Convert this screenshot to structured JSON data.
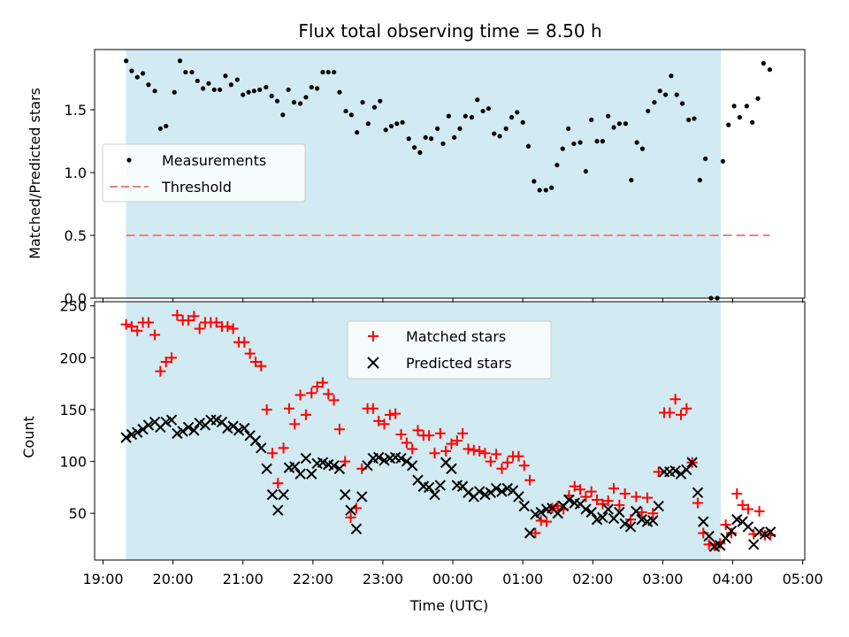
{
  "title": "Flux total observing time = 8.50 h",
  "colors": {
    "shade": "#add8e6",
    "threshold": "#f08080",
    "matched": "#ff0000",
    "predicted": "#000000",
    "measurement": "#000000"
  },
  "chart_data": [
    {
      "type": "scatter",
      "panel": "top",
      "title": "Flux total observing time = 8.50 h",
      "ylabel": "Matched/Predicted stars",
      "xlabel": "",
      "x_unit": "hours since 19:00 UTC",
      "xlim": [
        -0.12,
        10.03
      ],
      "ylim": [
        0,
        1.98
      ],
      "yticks": [
        0.0,
        0.5,
        1.0,
        1.5
      ],
      "ytick_labels": [
        "0.0",
        "0.5",
        "1.0",
        "1.5"
      ],
      "shaded_interval": [
        0.33,
        8.83
      ],
      "legend": {
        "position": "center-left",
        "entries": [
          "Measurements",
          "Threshold"
        ]
      },
      "series": [
        {
          "name": "Measurements",
          "marker": "dot",
          "x": [
            0.33,
            0.41,
            0.49,
            0.57,
            0.65,
            0.74,
            0.82,
            0.9,
            1.02,
            1.1,
            1.18,
            1.27,
            1.35,
            1.43,
            1.51,
            1.59,
            1.67,
            1.75,
            1.83,
            1.92,
            2.0,
            2.08,
            2.16,
            2.24,
            2.33,
            2.41,
            2.49,
            2.57,
            2.65,
            2.73,
            2.82,
            2.9,
            2.98,
            3.06,
            3.14,
            3.22,
            3.3,
            3.38,
            3.47,
            3.55,
            3.63,
            3.71,
            3.79,
            3.88,
            3.96,
            4.04,
            4.12,
            4.2,
            4.28,
            4.37,
            4.45,
            4.53,
            4.61,
            4.69,
            4.78,
            4.86,
            4.94,
            5.02,
            5.1,
            5.18,
            5.27,
            5.35,
            5.43,
            5.51,
            5.59,
            5.67,
            5.76,
            5.84,
            5.92,
            6.0,
            6.08,
            6.16,
            6.24,
            6.33,
            6.41,
            6.49,
            6.57,
            6.65,
            6.73,
            6.82,
            6.9,
            6.98,
            7.06,
            7.14,
            7.22,
            7.3,
            7.38,
            7.47,
            7.55,
            7.63,
            7.71,
            7.79,
            7.88,
            7.96,
            8.04,
            8.12,
            8.2,
            8.28,
            8.37,
            8.45,
            8.53,
            8.61,
            8.69,
            8.78,
            8.86,
            8.94,
            9.02,
            9.1,
            9.2,
            9.28,
            9.36,
            9.44,
            9.53
          ],
          "y": [
            1.89,
            1.81,
            1.76,
            1.79,
            1.7,
            1.65,
            1.35,
            1.37,
            1.64,
            1.89,
            1.8,
            1.8,
            1.73,
            1.67,
            1.71,
            1.66,
            1.66,
            1.77,
            1.7,
            1.74,
            1.62,
            1.64,
            1.65,
            1.66,
            1.68,
            1.61,
            1.57,
            1.46,
            1.66,
            1.56,
            1.55,
            1.6,
            1.68,
            1.67,
            1.8,
            1.8,
            1.8,
            1.64,
            1.49,
            1.46,
            1.32,
            1.56,
            1.39,
            1.52,
            1.57,
            1.34,
            1.37,
            1.39,
            1.4,
            1.27,
            1.2,
            1.16,
            1.28,
            1.27,
            1.35,
            1.23,
            1.45,
            1.28,
            1.35,
            1.45,
            1.44,
            1.58,
            1.49,
            1.51,
            1.31,
            1.29,
            1.35,
            1.44,
            1.48,
            1.4,
            1.21,
            0.93,
            0.86,
            0.86,
            0.88,
            1.06,
            1.19,
            1.35,
            1.23,
            1.24,
            1.01,
            1.42,
            1.25,
            1.25,
            1.45,
            1.36,
            1.39,
            1.39,
            0.94,
            1.24,
            1.19,
            1.49,
            1.56,
            1.65,
            1.62,
            1.77,
            1.62,
            1.55,
            1.42,
            1.43,
            0.94,
            1.11,
            0.0,
            0.0,
            1.09,
            1.38,
            1.53,
            1.44,
            1.53,
            1.4,
            1.59,
            1.87,
            1.82
          ]
        },
        {
          "name": "Threshold",
          "style": "dashed",
          "x": [
            0.33,
            9.53
          ],
          "y": [
            0.5,
            0.5
          ]
        }
      ]
    },
    {
      "type": "scatter",
      "panel": "bottom",
      "ylabel": "Count",
      "xlabel": "Time (UTC)",
      "x_unit": "hours since 19:00 UTC",
      "xlim": [
        -0.12,
        10.03
      ],
      "ylim": [
        5,
        254
      ],
      "yticks": [
        50,
        100,
        150,
        200,
        250
      ],
      "ytick_labels": [
        "50",
        "100",
        "150",
        "200",
        "250"
      ],
      "xticks": [
        0,
        1,
        2,
        3,
        4,
        5,
        6,
        7,
        8,
        9,
        10
      ],
      "xtick_labels": [
        "19:00",
        "20:00",
        "21:00",
        "22:00",
        "23:00",
        "00:00",
        "01:00",
        "02:00",
        "03:00",
        "04:00",
        "05:00"
      ],
      "shaded_interval": [
        0.33,
        8.83
      ],
      "legend": {
        "position": "top-center",
        "entries": [
          "Matched stars",
          "Predicted stars"
        ]
      },
      "series": [
        {
          "name": "Matched stars",
          "marker": "plus",
          "x": [
            0.33,
            0.41,
            0.49,
            0.57,
            0.65,
            0.74,
            0.82,
            0.9,
            0.98,
            1.06,
            1.14,
            1.22,
            1.3,
            1.38,
            1.46,
            1.54,
            1.62,
            1.7,
            1.78,
            1.86,
            1.94,
            2.02,
            2.1,
            2.18,
            2.26,
            2.34,
            2.42,
            2.5,
            2.58,
            2.66,
            2.74,
            2.82,
            2.9,
            2.98,
            3.06,
            3.14,
            3.22,
            3.3,
            3.38,
            3.46,
            3.54,
            3.62,
            3.7,
            3.78,
            3.86,
            3.94,
            4.02,
            4.1,
            4.18,
            4.26,
            4.34,
            4.42,
            4.5,
            4.58,
            4.66,
            4.74,
            4.82,
            4.9,
            4.98,
            5.06,
            5.14,
            5.22,
            5.3,
            5.38,
            5.46,
            5.54,
            5.62,
            5.7,
            5.78,
            5.86,
            5.94,
            6.02,
            6.1,
            6.18,
            6.26,
            6.34,
            6.42,
            6.5,
            6.58,
            6.66,
            6.74,
            6.82,
            6.9,
            6.98,
            7.06,
            7.14,
            7.22,
            7.3,
            7.38,
            7.46,
            7.54,
            7.62,
            7.7,
            7.78,
            7.86,
            7.94,
            8.02,
            8.1,
            8.18,
            8.26,
            8.34,
            8.42,
            8.5,
            8.58,
            8.66,
            8.74,
            8.82,
            8.9,
            8.98,
            9.06,
            9.14,
            9.22,
            9.3,
            9.38,
            9.46,
            9.54
          ],
          "y": [
            232,
            230,
            226,
            234,
            234,
            222,
            187,
            196,
            200,
            241,
            236,
            236,
            240,
            228,
            234,
            234,
            234,
            230,
            230,
            228,
            215,
            215,
            204,
            196,
            192,
            150,
            108,
            79,
            113,
            151,
            136,
            164,
            145,
            166,
            172,
            176,
            165,
            159,
            131,
            100,
            46,
            55,
            93,
            151,
            151,
            139,
            136,
            145,
            146,
            126,
            118,
            112,
            130,
            125,
            125,
            108,
            127,
            110,
            117,
            120,
            127,
            112,
            111,
            110,
            108,
            100,
            107,
            93,
            99,
            105,
            105,
            96,
            82,
            31,
            43,
            42,
            55,
            57,
            54,
            67,
            76,
            73,
            66,
            71,
            63,
            59,
            62,
            74,
            58,
            69,
            44,
            66,
            51,
            65,
            50,
            90,
            147,
            147,
            160,
            145,
            151,
            99,
            60,
            31,
            20,
            19,
            21,
            39,
            31,
            69,
            58,
            54,
            30,
            52,
            29,
            29
          ]
        },
        {
          "name": "Predicted stars",
          "marker": "x",
          "x": [
            0.33,
            0.41,
            0.49,
            0.57,
            0.65,
            0.74,
            0.82,
            0.9,
            0.98,
            1.06,
            1.14,
            1.22,
            1.3,
            1.38,
            1.46,
            1.54,
            1.62,
            1.7,
            1.78,
            1.86,
            1.94,
            2.02,
            2.1,
            2.18,
            2.26,
            2.34,
            2.42,
            2.5,
            2.58,
            2.66,
            2.74,
            2.82,
            2.9,
            2.98,
            3.06,
            3.14,
            3.22,
            3.3,
            3.38,
            3.46,
            3.54,
            3.62,
            3.7,
            3.78,
            3.86,
            3.94,
            4.02,
            4.1,
            4.18,
            4.26,
            4.34,
            4.42,
            4.5,
            4.58,
            4.66,
            4.74,
            4.82,
            4.9,
            4.98,
            5.06,
            5.14,
            5.22,
            5.3,
            5.38,
            5.46,
            5.54,
            5.62,
            5.7,
            5.78,
            5.86,
            5.94,
            6.02,
            6.1,
            6.18,
            6.26,
            6.34,
            6.42,
            6.5,
            6.58,
            6.66,
            6.74,
            6.82,
            6.9,
            6.98,
            7.06,
            7.14,
            7.22,
            7.3,
            7.38,
            7.46,
            7.54,
            7.62,
            7.7,
            7.78,
            7.86,
            7.94,
            8.02,
            8.1,
            8.18,
            8.26,
            8.34,
            8.42,
            8.5,
            8.58,
            8.66,
            8.74,
            8.82,
            8.9,
            8.98,
            9.06,
            9.14,
            9.22,
            9.3,
            9.38,
            9.46,
            9.54
          ],
          "y": [
            123,
            126,
            128,
            131,
            135,
            138,
            133,
            138,
            140,
            127,
            129,
            133,
            130,
            137,
            135,
            140,
            140,
            138,
            132,
            134,
            130,
            132,
            125,
            120,
            113,
            93,
            68,
            53,
            68,
            94,
            95,
            88,
            103,
            88,
            98,
            99,
            97,
            96,
            93,
            68,
            53,
            35,
            66,
            96,
            103,
            104,
            101,
            103,
            104,
            103,
            100,
            96,
            82,
            76,
            75,
            68,
            77,
            99,
            93,
            77,
            76,
            70,
            66,
            71,
            68,
            70,
            74,
            71,
            74,
            72,
            66,
            57,
            31,
            49,
            51,
            54,
            55,
            50,
            57,
            63,
            60,
            59,
            54,
            51,
            44,
            46,
            54,
            45,
            51,
            40,
            37,
            52,
            44,
            42,
            43,
            57,
            90,
            90,
            91,
            88,
            92,
            99,
            70,
            42,
            28,
            18,
            19,
            26,
            33,
            44,
            42,
            37,
            20,
            32,
            30,
            32
          ]
        }
      ]
    }
  ]
}
